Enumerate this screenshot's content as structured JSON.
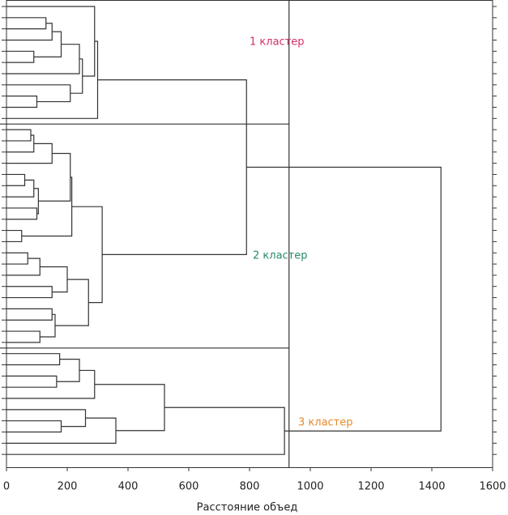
{
  "chart_data": {
    "type": "dendrogram",
    "xlabel": "Расстояние объед",
    "xlim": [
      0,
      1600
    ],
    "xticks": [
      0,
      200,
      400,
      600,
      800,
      1000,
      1200,
      1400,
      1600
    ],
    "leaf_count": 41,
    "cut": 930,
    "merges": [
      [
        1,
        2,
        130
      ],
      [
        41,
        3,
        150
      ],
      [
        4,
        5,
        90
      ],
      [
        42,
        43,
        180
      ],
      [
        44,
        6,
        240
      ],
      [
        8,
        9,
        100
      ],
      [
        7,
        46,
        210
      ],
      [
        45,
        47,
        250
      ],
      [
        0,
        48,
        290
      ],
      [
        49,
        10,
        300
      ],
      [
        11,
        12,
        80
      ],
      [
        51,
        13,
        90
      ],
      [
        52,
        14,
        150
      ],
      [
        15,
        16,
        60
      ],
      [
        54,
        17,
        90
      ],
      [
        18,
        19,
        100
      ],
      [
        55,
        56,
        105
      ],
      [
        53,
        57,
        210
      ],
      [
        20,
        21,
        50
      ],
      [
        58,
        59,
        215
      ],
      [
        22,
        23,
        70
      ],
      [
        61,
        24,
        110
      ],
      [
        25,
        26,
        150
      ],
      [
        62,
        63,
        200
      ],
      [
        27,
        28,
        150
      ],
      [
        29,
        30,
        110
      ],
      [
        65,
        66,
        160
      ],
      [
        64,
        67,
        270
      ],
      [
        60,
        68,
        315
      ],
      [
        31,
        32,
        175
      ],
      [
        33,
        34,
        165
      ],
      [
        70,
        71,
        240
      ],
      [
        72,
        35,
        290
      ],
      [
        37,
        38,
        180
      ],
      [
        36,
        74,
        260
      ],
      [
        75,
        39,
        360
      ],
      [
        73,
        76,
        520
      ],
      [
        77,
        40,
        915
      ],
      [
        50,
        69,
        790
      ],
      [
        79,
        78,
        1430
      ]
    ],
    "clusters": [
      {
        "label": "1 кластер",
        "color": "#d1306a",
        "first": 0,
        "last": 10
      },
      {
        "label": "2 кластер",
        "color": "#2a8a6a",
        "first": 11,
        "last": 30
      },
      {
        "label": "3 кластер",
        "color": "#e8882a",
        "first": 31,
        "last": 40
      }
    ]
  }
}
